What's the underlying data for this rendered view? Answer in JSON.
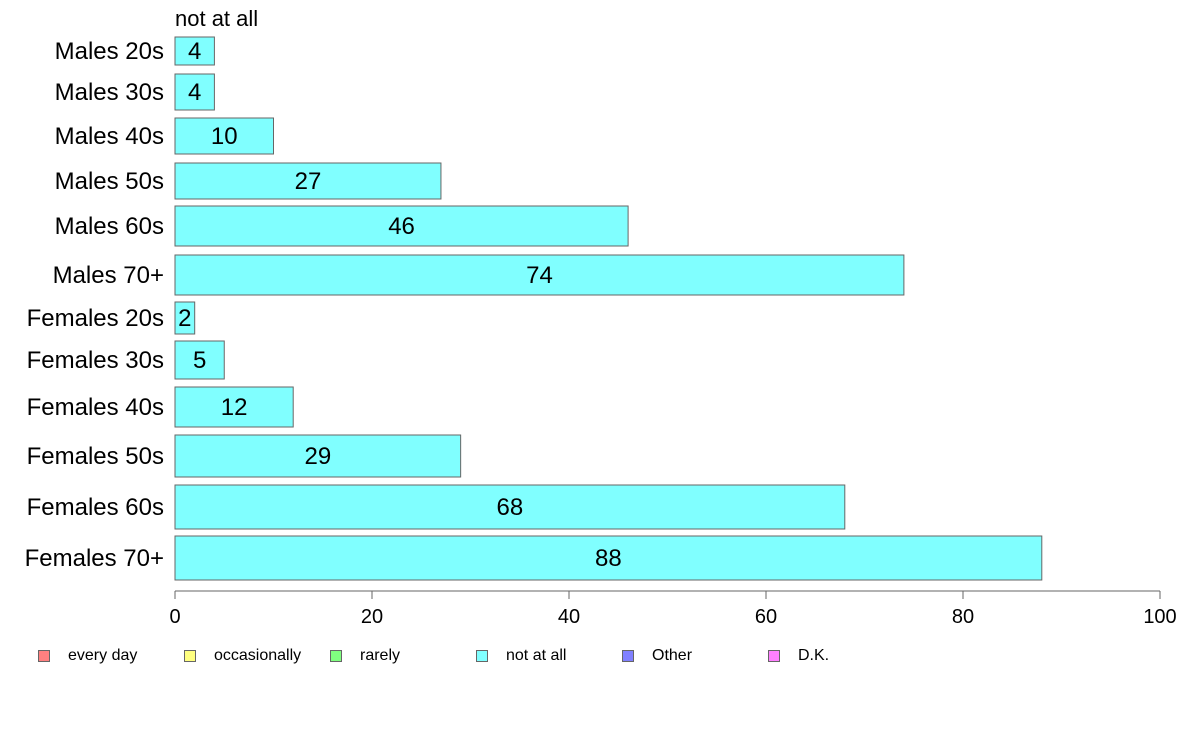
{
  "chart_data": {
    "type": "bar",
    "orientation": "horizontal",
    "title": "",
    "series_label": "not at all",
    "categories": [
      "Males 20s",
      "Males 30s",
      "Males 40s",
      "Males 50s",
      "Males 60s",
      "Males 70+",
      "Females 20s",
      "Females 30s",
      "Females 40s",
      "Females 50s",
      "Females 60s",
      "Females 70+"
    ],
    "series": [
      {
        "name": "not at all",
        "color": "#80ffff",
        "values": [
          4,
          4,
          10,
          27,
          46,
          74,
          2,
          5,
          12,
          29,
          68,
          88
        ]
      }
    ],
    "value_labels": [
      "4",
      "4",
      "10",
      "27",
      "46",
      "74",
      "2",
      "5",
      "12",
      "29",
      "68",
      "88"
    ],
    "xlim": [
      0,
      100
    ],
    "x_ticks": [
      0,
      20,
      40,
      60,
      80,
      100
    ],
    "x_tick_labels": [
      "0",
      "20",
      "40",
      "60",
      "80",
      "100"
    ],
    "xlabel": "",
    "ylabel": "",
    "grid": false,
    "legend_position": "bottom"
  },
  "legend": [
    {
      "label": "every day",
      "color": "#ff8080"
    },
    {
      "label": "occasionally",
      "color": "#ffff80"
    },
    {
      "label": "rarely",
      "color": "#80ff80"
    },
    {
      "label": "not at all",
      "color": "#80ffff"
    },
    {
      "label": "Other",
      "color": "#8080ff"
    },
    {
      "label": "D.K.",
      "color": "#ff80ff"
    }
  ]
}
